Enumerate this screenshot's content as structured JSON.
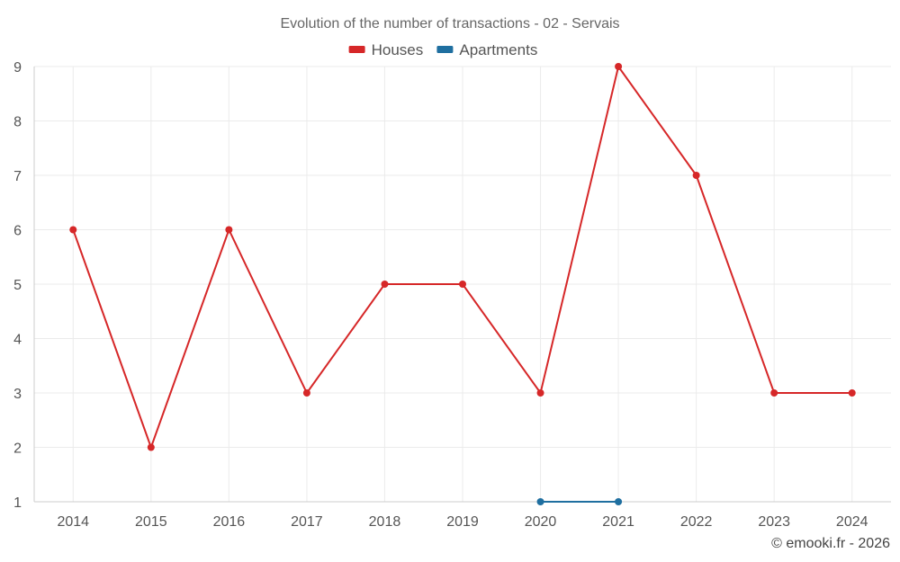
{
  "chart_data": {
    "type": "line",
    "title": "Evolution of the number of transactions - 02 - Servais",
    "categories": [
      "2014",
      "2015",
      "2016",
      "2017",
      "2018",
      "2019",
      "2020",
      "2021",
      "2022",
      "2023",
      "2024"
    ],
    "series": [
      {
        "name": "Houses",
        "color": "#d62728",
        "values": [
          6,
          2,
          6,
          3,
          5,
          5,
          3,
          9,
          7,
          3,
          3
        ]
      },
      {
        "name": "Apartments",
        "color": "#1f6fa0",
        "values": [
          null,
          null,
          null,
          null,
          null,
          null,
          1,
          1,
          null,
          null,
          null
        ]
      }
    ],
    "ylim": [
      1,
      9
    ],
    "yticks": [
      "1",
      "2",
      "3",
      "4",
      "5",
      "6",
      "7",
      "8",
      "9"
    ],
    "xlabel": "",
    "ylabel": "",
    "grid": true,
    "legend": "top-center"
  },
  "credit": "© emooki.fr - 2026"
}
